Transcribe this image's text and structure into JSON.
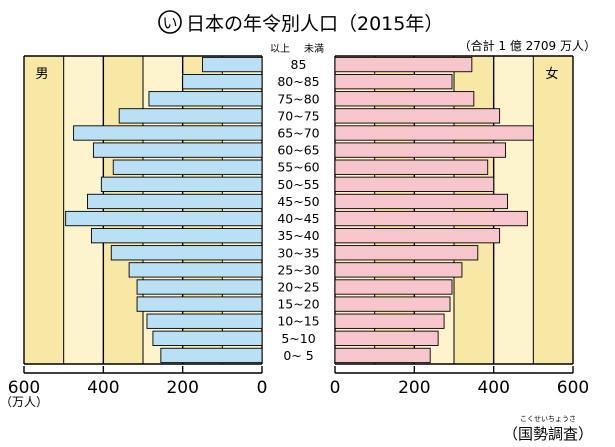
{
  "chart_data": {
    "type": "bar",
    "title": "日本の年令別人口（2015年）",
    "badge": "い",
    "total_note": "（合計 1 億 2709 万人）",
    "age_header": {
      "lower": "以上",
      "upper": "未満"
    },
    "categories": [
      "85",
      "80~85",
      "75~80",
      "70~75",
      "65~70",
      "60~65",
      "55~60",
      "50~55",
      "45~50",
      "40~45",
      "35~40",
      "30~35",
      "25~30",
      "20~25",
      "15~20",
      "10~15",
      "5~10",
      "0~ 5"
    ],
    "series": [
      {
        "name": "男",
        "values": [
          150,
          200,
          285,
          360,
          475,
          425,
          375,
          405,
          440,
          495,
          430,
          380,
          335,
          315,
          315,
          290,
          275,
          255
        ]
      },
      {
        "name": "女",
        "values": [
          345,
          295,
          350,
          415,
          500,
          430,
          385,
          400,
          435,
          485,
          415,
          360,
          320,
          295,
          290,
          275,
          260,
          240
        ]
      }
    ],
    "xlim": [
      0,
      600
    ],
    "ticks": [
      600,
      400,
      200,
      0
    ],
    "tick_labels_left": [
      "600",
      "400",
      "200",
      "0"
    ],
    "tick_labels_right": [
      "0",
      "200",
      "400",
      "600"
    ],
    "unit_label": "（万人）",
    "source": "（国勢調査）",
    "source_ruby": "こくせいちょうさ",
    "colors": {
      "male_bar": "#b9e0f4",
      "female_bar": "#f7c6cc",
      "band_light": "#fdf3cc",
      "band_dark": "#f7e8a6",
      "grid": "#000000"
    }
  }
}
